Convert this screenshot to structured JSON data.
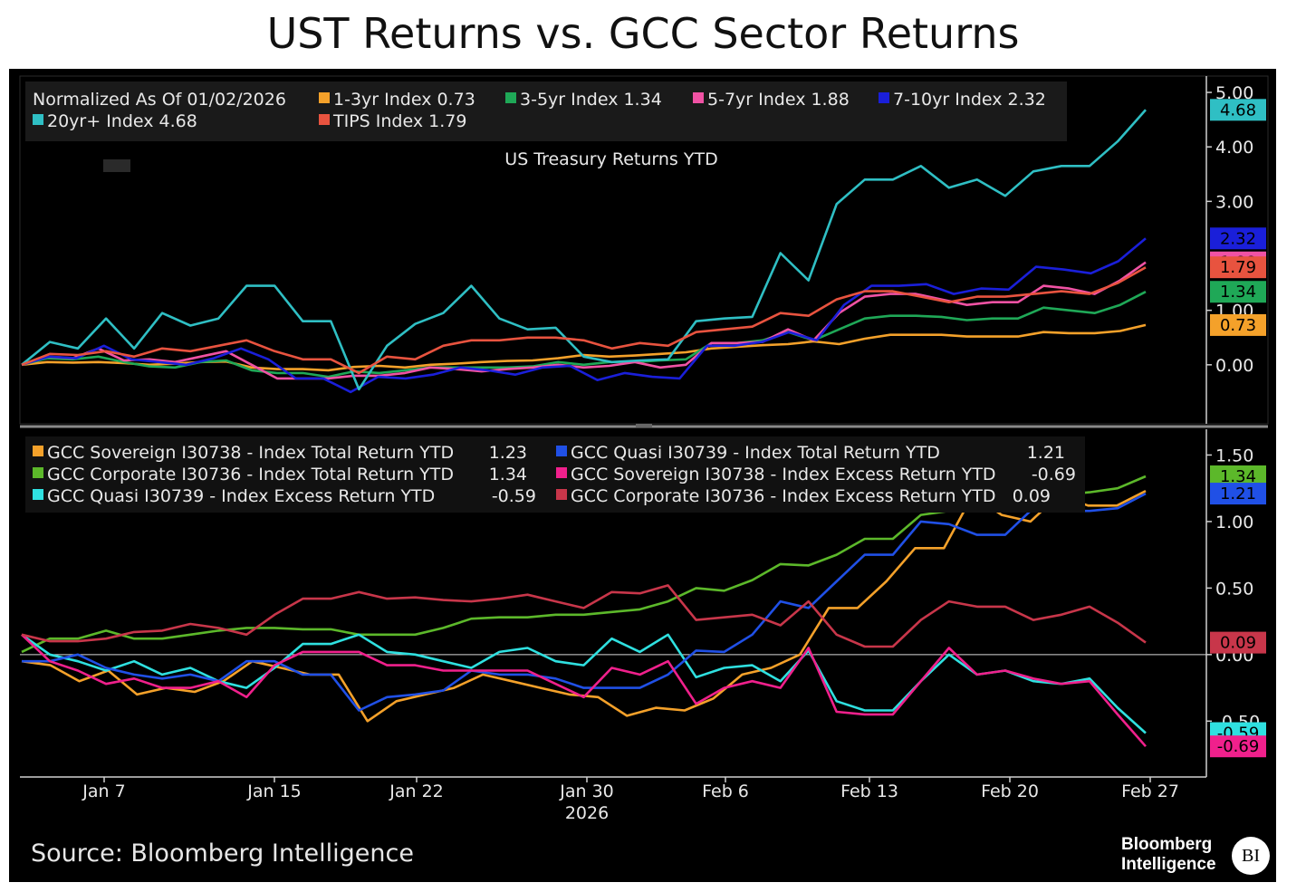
{
  "title": "UST Returns vs. GCC Sector Returns",
  "source": "Source: Bloomberg Intelligence",
  "logo": {
    "line1": "Bloomberg",
    "line2": "Intelligence",
    "badge": "BI"
  },
  "chart_data": [
    {
      "type": "line",
      "subtitle": "US Treasury Returns YTD",
      "legend_header": "Normalized As Of 01/02/2026",
      "legend_position": "top-left",
      "ylim": [
        -1.05,
        5.3
      ],
      "y_ticks": [
        {
          "label": "5.00",
          "value": 5.0
        },
        {
          "label": "4.00",
          "value": 4.0
        },
        {
          "label": "3.00",
          "value": 3.0
        },
        {
          "label": "1.00",
          "value": 1.0
        },
        {
          "label": "0.00",
          "value": 0.0
        }
      ],
      "grid": false,
      "series": [
        {
          "name": "1-3yr Index",
          "value_label": "0.73",
          "color": "#f4a12a",
          "values": [
            0.0,
            0.05,
            0.04,
            0.05,
            0.03,
            0.0,
            0.02,
            0.05,
            0.06,
            -0.05,
            -0.08,
            -0.08,
            -0.1,
            -0.04,
            -0.02,
            -0.05,
            0.0,
            0.02,
            0.05,
            0.07,
            0.08,
            0.12,
            0.18,
            0.15,
            0.17,
            0.2,
            0.23,
            0.3,
            0.33,
            0.36,
            0.38,
            0.43,
            0.38,
            0.48,
            0.55,
            0.55,
            0.55,
            0.52,
            0.52,
            0.52,
            0.6,
            0.58,
            0.58,
            0.62,
            0.73
          ]
        },
        {
          "name": "3-5yr Index",
          "value_label": "1.34",
          "color": "#1fa857",
          "values": [
            0.0,
            0.12,
            0.1,
            0.15,
            0.05,
            -0.03,
            -0.05,
            0.05,
            0.08,
            -0.1,
            -0.15,
            -0.15,
            -0.22,
            -0.12,
            -0.15,
            -0.1,
            -0.05,
            -0.05,
            -0.05,
            -0.05,
            -0.03,
            0.05,
            0.0,
            0.05,
            0.05,
            0.08,
            0.1,
            0.4,
            0.4,
            0.45,
            0.6,
            0.45,
            0.65,
            0.85,
            0.9,
            0.9,
            0.88,
            0.82,
            0.85,
            0.85,
            1.05,
            1.0,
            0.95,
            1.1,
            1.34
          ]
        },
        {
          "name": "5-7yr Index",
          "value_label": "1.88",
          "color": "#f052a4",
          "values": [
            0.0,
            0.15,
            0.12,
            0.3,
            0.08,
            0.1,
            0.05,
            0.15,
            0.25,
            0.0,
            -0.25,
            -0.25,
            -0.25,
            -0.2,
            -0.2,
            -0.15,
            -0.05,
            -0.08,
            -0.12,
            -0.08,
            -0.05,
            0.0,
            -0.05,
            -0.02,
            0.05,
            -0.05,
            0.0,
            0.4,
            0.4,
            0.42,
            0.65,
            0.45,
            0.95,
            1.25,
            1.3,
            1.3,
            1.2,
            1.1,
            1.15,
            1.15,
            1.45,
            1.4,
            1.3,
            1.55,
            1.88
          ]
        },
        {
          "name": "7-10yr Index",
          "value_label": "2.32",
          "color": "#1a1fd9",
          "values": [
            0.0,
            0.15,
            0.12,
            0.35,
            0.1,
            0.05,
            0.0,
            0.12,
            0.3,
            0.1,
            -0.25,
            -0.25,
            -0.5,
            -0.22,
            -0.25,
            -0.18,
            -0.05,
            -0.1,
            -0.18,
            -0.05,
            -0.02,
            -0.28,
            -0.15,
            -0.22,
            -0.25,
            0.35,
            0.35,
            0.42,
            0.6,
            0.45,
            1.1,
            1.45,
            1.45,
            1.48,
            1.3,
            1.4,
            1.38,
            1.8,
            1.75,
            1.68,
            1.9,
            2.32
          ]
        },
        {
          "name": "20yr+ Index",
          "value_label": "4.68",
          "color": "#2fbfc4",
          "values": [
            0.0,
            0.42,
            0.3,
            0.85,
            0.3,
            0.95,
            0.72,
            0.85,
            1.45,
            1.45,
            0.8,
            0.8,
            -0.45,
            0.35,
            0.75,
            0.95,
            1.45,
            0.85,
            0.65,
            0.68,
            0.15,
            0.05,
            0.08,
            0.1,
            0.8,
            0.85,
            0.88,
            2.05,
            1.55,
            2.95,
            3.4,
            3.4,
            3.65,
            3.25,
            3.4,
            3.1,
            3.55,
            3.65,
            3.65,
            4.1,
            4.68
          ]
        },
        {
          "name": "TIPS Index",
          "value_label": "1.79",
          "color": "#e8533f",
          "values": [
            0.0,
            0.2,
            0.18,
            0.25,
            0.15,
            0.3,
            0.25,
            0.35,
            0.45,
            0.25,
            0.1,
            0.1,
            -0.15,
            0.15,
            0.1,
            0.35,
            0.45,
            0.45,
            0.5,
            0.5,
            0.45,
            0.3,
            0.4,
            0.35,
            0.6,
            0.65,
            0.7,
            0.95,
            0.9,
            1.2,
            1.35,
            1.35,
            1.25,
            1.15,
            1.25,
            1.25,
            1.3,
            1.35,
            1.3,
            1.5,
            1.79
          ]
        }
      ]
    },
    {
      "type": "line",
      "legend_position": "top-left",
      "ylim": [
        -0.92,
        1.68
      ],
      "y_ticks": [
        {
          "label": "1.50",
          "value": 1.5
        },
        {
          "label": "1.00",
          "value": 1.0
        },
        {
          "label": "0.50",
          "value": 0.5
        },
        {
          "label": "0.00",
          "value": 0.0
        },
        {
          "label": "-0.50",
          "value": -0.5
        }
      ],
      "zero_line": true,
      "x_tick_labels": [
        "Jan 7",
        "Jan 15",
        "Jan 22",
        "Jan 30",
        "Feb 6",
        "Feb 13",
        "Feb 20",
        "Feb 27"
      ],
      "x_year_label": "2026",
      "series": [
        {
          "name": "GCC Sovereign I30738   - Index Total Return YTD",
          "value_label": "1.23",
          "color": "#f4a12a",
          "values": [
            -0.05,
            -0.08,
            -0.2,
            -0.12,
            -0.3,
            -0.25,
            -0.28,
            -0.2,
            -0.05,
            -0.1,
            -0.15,
            -0.15,
            -0.5,
            -0.35,
            -0.3,
            -0.25,
            -0.15,
            -0.2,
            -0.25,
            -0.3,
            -0.32,
            -0.46,
            -0.4,
            -0.42,
            -0.33,
            -0.15,
            -0.1,
            0.0,
            0.35,
            0.35,
            0.55,
            0.8,
            0.8,
            1.2,
            1.05,
            1.0,
            1.2,
            1.12,
            1.12,
            1.23
          ]
        },
        {
          "name": "GCC Corporate I30736 - Index Total Return YTD",
          "value_label": "1.34",
          "color": "#5cb82a",
          "values": [
            0.02,
            0.12,
            0.12,
            0.18,
            0.12,
            0.12,
            0.15,
            0.18,
            0.2,
            0.2,
            0.19,
            0.19,
            0.15,
            0.15,
            0.15,
            0.2,
            0.27,
            0.28,
            0.28,
            0.3,
            0.3,
            0.32,
            0.34,
            0.4,
            0.5,
            0.48,
            0.56,
            0.68,
            0.67,
            0.75,
            0.87,
            0.87,
            1.05,
            1.08,
            1.08,
            1.1,
            1.18,
            1.2,
            1.22,
            1.25,
            1.34
          ]
        },
        {
          "name": "GCC Quasi I30739   - Index Excess Return YTD",
          "value_label": "-0.59",
          "color": "#2fe0e0",
          "values": [
            0.15,
            0.0,
            -0.05,
            -0.12,
            -0.05,
            -0.15,
            -0.1,
            -0.2,
            -0.25,
            -0.1,
            0.08,
            0.08,
            0.15,
            0.02,
            0.0,
            -0.05,
            -0.1,
            0.02,
            0.05,
            -0.05,
            -0.08,
            0.12,
            0.02,
            0.15,
            -0.17,
            -0.1,
            -0.08,
            -0.2,
            0.03,
            -0.35,
            -0.42,
            -0.42,
            -0.2,
            0.0,
            -0.15,
            -0.12,
            -0.2,
            -0.22,
            -0.18,
            -0.4,
            -0.59
          ]
        },
        {
          "name": "GCC Quasi I30739   - Index Total Return YTD",
          "value_label": "1.21",
          "color": "#2050e6",
          "values": [
            -0.05,
            -0.05,
            0.0,
            -0.1,
            -0.15,
            -0.18,
            -0.15,
            -0.2,
            -0.05,
            -0.05,
            -0.15,
            -0.15,
            -0.42,
            -0.32,
            -0.3,
            -0.27,
            -0.12,
            -0.15,
            -0.15,
            -0.18,
            -0.25,
            -0.25,
            -0.25,
            -0.15,
            0.03,
            0.02,
            0.15,
            0.4,
            0.35,
            0.55,
            0.75,
            0.75,
            1.0,
            0.98,
            0.9,
            0.9,
            1.1,
            1.08,
            1.08,
            1.1,
            1.21
          ]
        },
        {
          "name": "GCC Sovereign I30738   - Index Excess Return YTD",
          "value_label": "-0.69",
          "color": "#f0208c",
          "values": [
            0.15,
            -0.05,
            -0.12,
            -0.22,
            -0.18,
            -0.25,
            -0.25,
            -0.2,
            -0.32,
            -0.08,
            0.02,
            0.02,
            0.02,
            -0.08,
            -0.08,
            -0.12,
            -0.12,
            -0.12,
            -0.12,
            -0.22,
            -0.32,
            -0.1,
            -0.15,
            -0.05,
            -0.37,
            -0.25,
            -0.2,
            -0.25,
            0.05,
            -0.43,
            -0.45,
            -0.45,
            -0.2,
            0.05,
            -0.15,
            -0.12,
            -0.18,
            -0.22,
            -0.2,
            -0.45,
            -0.69
          ]
        },
        {
          "name": "GCC Corporate I30736 - Index Excess Return YTD",
          "value_label": "0.09",
          "color": "#c8364a",
          "values": [
            0.15,
            0.1,
            0.1,
            0.12,
            0.17,
            0.18,
            0.23,
            0.2,
            0.15,
            0.3,
            0.42,
            0.42,
            0.47,
            0.42,
            0.43,
            0.41,
            0.4,
            0.42,
            0.45,
            0.4,
            0.35,
            0.47,
            0.46,
            0.52,
            0.26,
            0.28,
            0.3,
            0.22,
            0.4,
            0.15,
            0.06,
            0.06,
            0.26,
            0.4,
            0.36,
            0.36,
            0.26,
            0.3,
            0.36,
            0.24,
            0.09
          ]
        }
      ]
    }
  ]
}
